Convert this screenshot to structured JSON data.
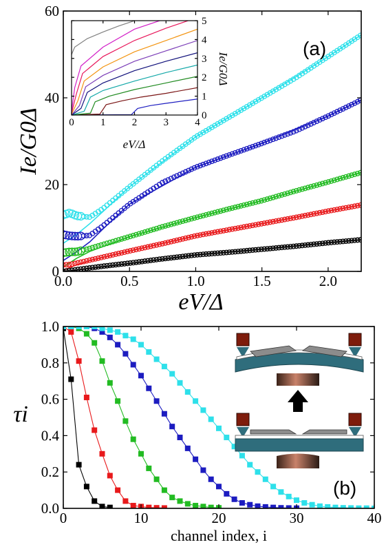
{
  "chart_data": [
    {
      "panel": "(a)",
      "type": "scatter",
      "xlabel": "eV/Δ",
      "ylabel": "Ie/G0Δ",
      "xlim": [
        0,
        2.25
      ],
      "ylim": [
        0,
        60
      ],
      "xticks": [
        0.0,
        0.5,
        1.0,
        1.5,
        2.0
      ],
      "xtick_labels": [
        "0.0",
        "0.5",
        "1.0",
        "1.5",
        "2.0"
      ],
      "yticks": [
        0,
        20,
        40,
        60
      ],
      "ytick_labels": [
        "0",
        "20",
        "40",
        "60"
      ],
      "series": [
        {
          "color": "#000000",
          "x": [
            0.0,
            0.05,
            0.1,
            0.2,
            0.3,
            0.5,
            0.75,
            1.0,
            1.25,
            1.5,
            1.75,
            2.0,
            2.25
          ],
          "y": [
            0.0,
            0.2,
            0.4,
            0.8,
            1.2,
            1.9,
            2.9,
            3.8,
            4.4,
            5.1,
            5.8,
            6.6,
            7.3
          ]
        },
        {
          "color": "#e8191b",
          "x": [
            0.0,
            0.05,
            0.1,
            0.2,
            0.3,
            0.5,
            0.75,
            1.0,
            1.25,
            1.5,
            1.75,
            2.0,
            2.25
          ],
          "y": [
            1.5,
            1.6,
            1.9,
            2.6,
            3.3,
            4.7,
            6.4,
            8.2,
            9.6,
            11.0,
            12.4,
            13.9,
            15.3
          ]
        },
        {
          "color": "#22bb22",
          "x": [
            0.0,
            0.05,
            0.1,
            0.2,
            0.3,
            0.5,
            0.75,
            1.0,
            1.25,
            1.5,
            1.75,
            2.0,
            2.25
          ],
          "y": [
            4.3,
            4.5,
            4.5,
            5.3,
            6.2,
            8.0,
            10.3,
            12.4,
            14.4,
            16.3,
            18.5,
            20.6,
            22.8
          ]
        },
        {
          "color": "#1c1cc0",
          "x": [
            0.0,
            0.05,
            0.1,
            0.2,
            0.3,
            0.5,
            0.75,
            1.0,
            1.25,
            1.5,
            1.75,
            2.0,
            2.25
          ],
          "y": [
            8.5,
            8.2,
            8.1,
            8.3,
            10.5,
            15.5,
            20.5,
            24.0,
            26.8,
            29.5,
            32.3,
            35.8,
            39.5
          ]
        },
        {
          "color": "#2ee0ea",
          "x": [
            0.0,
            0.05,
            0.1,
            0.2,
            0.3,
            0.5,
            0.75,
            1.0,
            1.25,
            1.5,
            1.75,
            2.0,
            2.25
          ],
          "y": [
            13.0,
            13.5,
            12.8,
            12.5,
            14.5,
            19.5,
            25.5,
            31.0,
            35.5,
            40.0,
            44.5,
            49.5,
            54.5
          ]
        }
      ],
      "fits": [
        {
          "color": "#000000",
          "x": [
            0.0,
            0.1,
            0.2,
            0.5,
            1.0,
            1.5,
            2.0,
            2.25
          ],
          "y": [
            0.0,
            0.3,
            0.7,
            1.8,
            3.8,
            5.1,
            6.6,
            7.3
          ]
        },
        {
          "color": "#e8191b",
          "x": [
            0.0,
            0.1,
            0.2,
            0.5,
            1.0,
            1.5,
            2.0,
            2.25
          ],
          "y": [
            0.3,
            1.5,
            2.5,
            4.7,
            8.2,
            11.0,
            13.9,
            15.3
          ]
        },
        {
          "color": "#22bb22",
          "x": [
            0.0,
            0.1,
            0.2,
            0.5,
            1.0,
            1.5,
            2.0,
            2.25
          ],
          "y": [
            1.0,
            3.0,
            4.6,
            8.0,
            12.4,
            16.3,
            20.6,
            22.8
          ]
        },
        {
          "color": "#1c1cc0",
          "x": [
            0.0,
            0.1,
            0.2,
            0.3,
            0.5,
            1.0,
            1.5,
            2.0,
            2.25
          ],
          "y": [
            2.5,
            4.5,
            6.8,
            9.8,
            15.5,
            24.0,
            29.5,
            35.8,
            39.5
          ]
        },
        {
          "color": "#2ee0ea",
          "x": [
            0.0,
            0.1,
            0.2,
            0.3,
            0.5,
            1.0,
            1.5,
            2.0,
            2.25
          ],
          "y": [
            6.5,
            8.5,
            11.0,
            13.8,
            19.5,
            31.0,
            40.0,
            49.5,
            54.5
          ]
        }
      ],
      "inset": {
        "type": "line",
        "xlabel": "eV/Δ",
        "ylabel": "Ie/G0Δ",
        "xlim": [
          0,
          4
        ],
        "ylim": [
          0,
          5
        ],
        "xticks": [
          0,
          1,
          2,
          3,
          4
        ],
        "xtick_labels": [
          "0",
          "1",
          "2",
          "3",
          "4"
        ],
        "yticks": [
          0,
          1,
          2,
          3,
          4,
          5
        ],
        "ytick_labels": [
          "0",
          "1",
          "2",
          "3",
          "4",
          "5"
        ],
        "series": [
          {
            "color": "#1c1cc0",
            "x": [
              0.0,
              1.9,
              2.1,
              2.5,
              3.0,
              4.0
            ],
            "y": [
              0.0,
              0.02,
              0.35,
              0.5,
              0.62,
              0.85
            ]
          },
          {
            "color": "#7a1414",
            "x": [
              0.0,
              0.9,
              1.1,
              1.6,
              2.2,
              3.0,
              4.0
            ],
            "y": [
              0.0,
              0.05,
              0.55,
              0.75,
              0.95,
              1.15,
              1.45
            ]
          },
          {
            "color": "#1f8a1f",
            "x": [
              0.0,
              0.6,
              0.75,
              1.2,
              2.0,
              3.0,
              4.0
            ],
            "y": [
              0.0,
              0.1,
              0.7,
              1.0,
              1.35,
              1.7,
              2.05
            ]
          },
          {
            "color": "#12a8a8",
            "x": [
              0.0,
              0.4,
              0.6,
              1.0,
              2.0,
              3.0,
              4.0
            ],
            "y": [
              0.0,
              0.2,
              0.95,
              1.3,
              1.8,
              2.25,
              2.65
            ]
          },
          {
            "color": "#0f0f7a",
            "x": [
              0.0,
              0.3,
              0.5,
              1.0,
              2.0,
              3.0,
              4.0
            ],
            "y": [
              0.0,
              0.35,
              1.2,
              1.7,
              2.35,
              2.85,
              3.3
            ]
          },
          {
            "color": "#7c3fb8",
            "x": [
              0.0,
              0.25,
              0.45,
              1.0,
              2.0,
              3.0,
              4.0
            ],
            "y": [
              0.0,
              0.5,
              1.5,
              2.1,
              2.85,
              3.4,
              3.95
            ]
          },
          {
            "color": "#f39410",
            "x": [
              0.0,
              0.2,
              0.4,
              1.0,
              2.0,
              3.0,
              4.0
            ],
            "y": [
              0.05,
              0.75,
              1.8,
              2.55,
              3.35,
              3.95,
              4.55
            ]
          },
          {
            "color": "#e8165a",
            "x": [
              0.0,
              0.15,
              0.35,
              1.0,
              2.0,
              3.0,
              3.7
            ],
            "y": [
              0.1,
              1.1,
              2.2,
              3.1,
              3.95,
              4.6,
              5.0
            ]
          },
          {
            "color": "#d21fc7",
            "x": [
              0.0,
              0.1,
              0.3,
              1.0,
              2.0,
              2.8
            ],
            "y": [
              0.2,
              1.45,
              2.6,
              3.6,
              4.55,
              5.0
            ]
          },
          {
            "color": "#808080",
            "x": [
              0.0,
              0.1,
              0.5,
              1.0,
              1.5,
              2.0
            ],
            "y": [
              3.2,
              3.6,
              4.05,
              4.4,
              4.72,
              5.0
            ]
          }
        ]
      }
    },
    {
      "panel": "(b)",
      "type": "line",
      "xlabel": "channel index, i",
      "ylabel": "τi",
      "xlim": [
        0,
        40
      ],
      "ylim": [
        0,
        1.0
      ],
      "xticks": [
        0,
        10,
        20,
        30,
        40
      ],
      "xtick_labels": [
        "0",
        "10",
        "20",
        "30",
        "40"
      ],
      "yticks": [
        0.0,
        0.2,
        0.4,
        0.6,
        0.8,
        1.0
      ],
      "ytick_labels": [
        "0.0",
        "0.2",
        "0.4",
        "0.6",
        "0.8",
        "1.0"
      ],
      "series": [
        {
          "color": "#000000",
          "x": [
            0,
            1,
            2,
            3,
            4,
            5,
            6
          ],
          "y": [
            0.99,
            0.71,
            0.24,
            0.12,
            0.04,
            0.01,
            0.005
          ]
        },
        {
          "color": "#e8191b",
          "x": [
            0,
            1,
            2,
            3,
            4,
            5,
            6,
            7,
            8,
            9,
            10,
            11,
            12,
            13
          ],
          "y": [
            1.0,
            0.97,
            0.81,
            0.61,
            0.43,
            0.3,
            0.18,
            0.1,
            0.04,
            0.015,
            0.01,
            0.005,
            0.003,
            0.002
          ]
        },
        {
          "color": "#22bb22",
          "x": [
            0,
            1,
            2,
            3,
            4,
            5,
            6,
            7,
            8,
            9,
            10,
            11,
            12,
            13,
            14,
            15,
            16,
            17,
            18,
            19,
            20
          ],
          "y": [
            1.0,
            1.0,
            0.99,
            0.96,
            0.91,
            0.81,
            0.69,
            0.59,
            0.48,
            0.38,
            0.3,
            0.22,
            0.16,
            0.1,
            0.06,
            0.04,
            0.025,
            0.015,
            0.01,
            0.005,
            0.003
          ]
        },
        {
          "color": "#1c1cc0",
          "x": [
            0,
            1,
            2,
            3,
            4,
            5,
            6,
            7,
            8,
            9,
            10,
            11,
            12,
            13,
            14,
            15,
            16,
            17,
            18,
            19,
            20,
            21,
            22,
            23,
            24,
            25,
            26,
            27,
            28,
            29,
            30
          ],
          "y": [
            1.0,
            1.0,
            1.0,
            1.0,
            0.99,
            0.97,
            0.94,
            0.9,
            0.85,
            0.79,
            0.73,
            0.66,
            0.59,
            0.52,
            0.45,
            0.39,
            0.33,
            0.27,
            0.21,
            0.16,
            0.12,
            0.08,
            0.05,
            0.03,
            0.02,
            0.012,
            0.008,
            0.005,
            0.003,
            0.002,
            0.001
          ]
        },
        {
          "color": "#2ee0ea",
          "x": [
            0,
            1,
            2,
            3,
            4,
            5,
            6,
            7,
            8,
            9,
            10,
            11,
            12,
            13,
            14,
            15,
            16,
            17,
            18,
            19,
            20,
            21,
            22,
            23,
            24,
            25,
            26,
            27,
            28,
            29,
            30,
            31,
            32,
            33,
            34,
            35,
            36,
            37,
            38,
            39,
            40
          ],
          "y": [
            1.0,
            1.0,
            1.0,
            1.0,
            1.0,
            0.99,
            0.98,
            0.97,
            0.95,
            0.93,
            0.9,
            0.86,
            0.82,
            0.78,
            0.74,
            0.69,
            0.64,
            0.59,
            0.54,
            0.49,
            0.44,
            0.39,
            0.34,
            0.29,
            0.24,
            0.2,
            0.16,
            0.12,
            0.09,
            0.065,
            0.045,
            0.03,
            0.02,
            0.012,
            0.008,
            0.005,
            0.003,
            0.002,
            0.001,
            0.001,
            0.0
          ]
        }
      ]
    }
  ]
}
